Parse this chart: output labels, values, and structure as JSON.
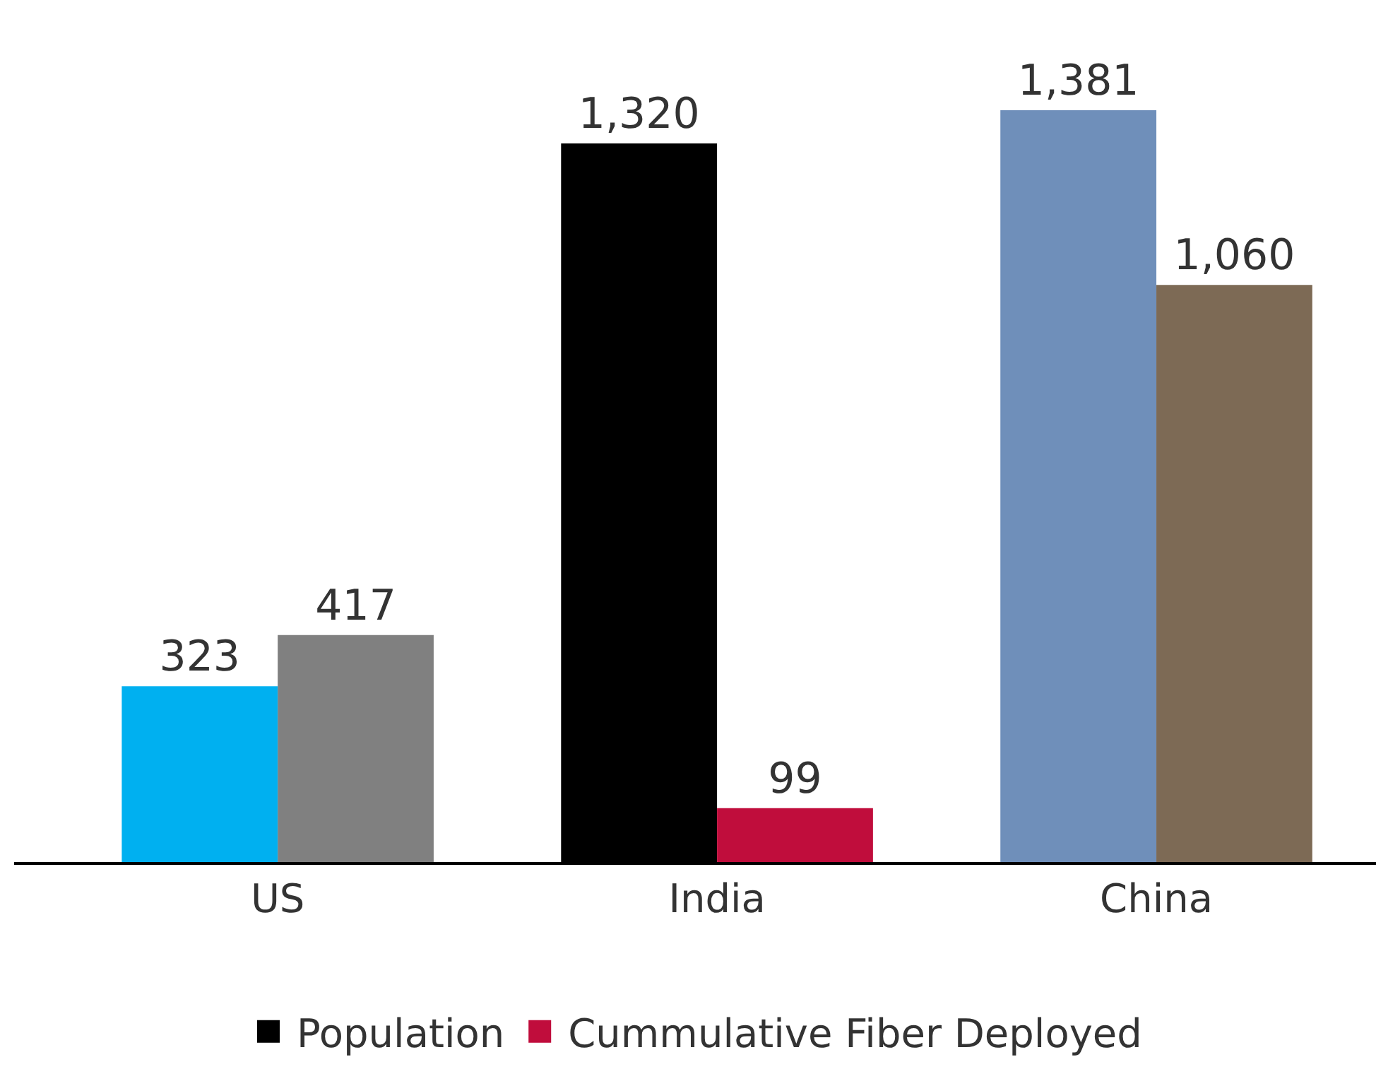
{
  "chart_data": {
    "type": "bar",
    "categories": [
      "US",
      "India",
      "China"
    ],
    "series": [
      {
        "name": "Population",
        "color": "#000000",
        "colors": [
          "#00b0f0",
          "#000000",
          "#6f8fba"
        ],
        "values": [
          323,
          1320,
          1381
        ],
        "value_labels": [
          "323",
          "1,320",
          "1,381"
        ]
      },
      {
        "name": "Cummulative Fiber Deployed",
        "color": "#c00d3c",
        "colors": [
          "#808080",
          "#c00d3c",
          "#7d6a55"
        ],
        "values": [
          417,
          99,
          1060
        ],
        "value_labels": [
          "417",
          "99",
          "1,060"
        ]
      }
    ],
    "legend": "bottom"
  }
}
